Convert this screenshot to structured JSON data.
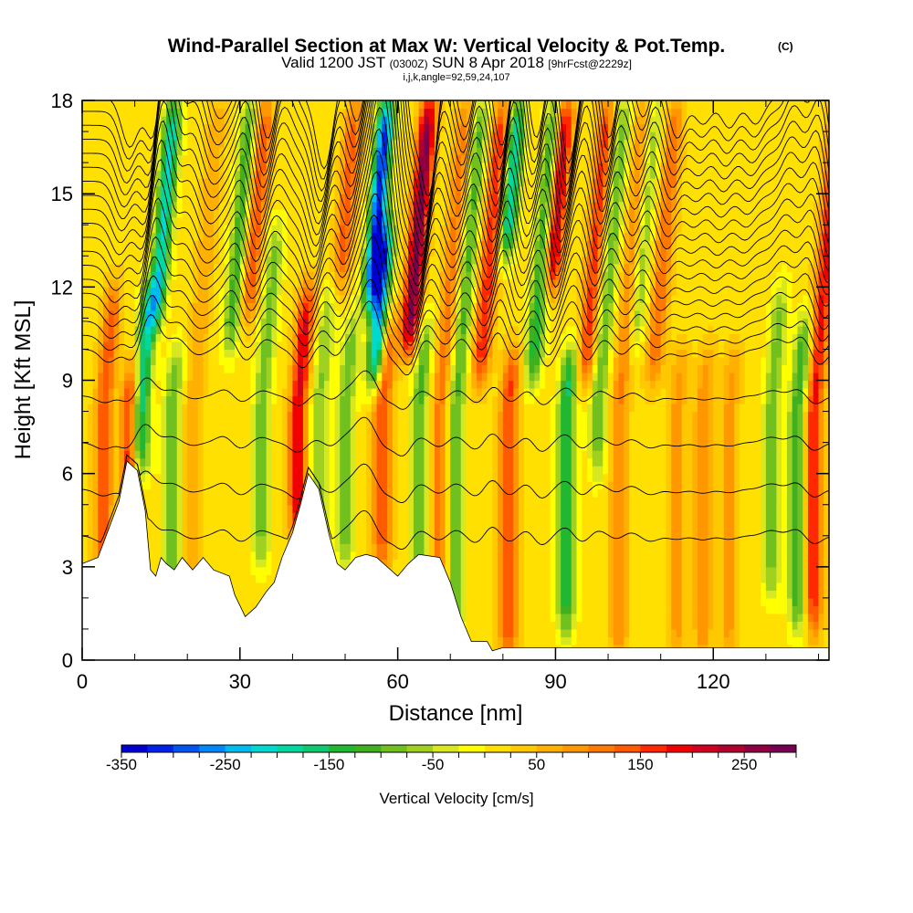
{
  "header": {
    "title": "Wind-Parallel Section at Max W: Vertical Velocity & Pot.Temp.",
    "copyright": "(C)",
    "valid_prefix": "Valid 1200 JST",
    "valid_utc": "(0300Z)",
    "valid_date": "SUN 8 Apr 2018",
    "forecast": "[9hrFcst@2229z]",
    "indices": "i,j,k,angle=92,59,24,107"
  },
  "chart_data": {
    "type": "heatmap",
    "xlabel": "Distance [nm]",
    "ylabel": "Height [Kft MSL]",
    "xlim": [
      0,
      142
    ],
    "ylim": [
      0,
      18
    ],
    "x_ticks": [
      {
        "value": 0,
        "label": "0"
      },
      {
        "value": 30,
        "label": "30"
      },
      {
        "value": 60,
        "label": "60"
      },
      {
        "value": 90,
        "label": "90"
      },
      {
        "value": 120,
        "label": "120"
      }
    ],
    "y_ticks": [
      {
        "value": 0,
        "label": "0"
      },
      {
        "value": 3,
        "label": "3"
      },
      {
        "value": 6,
        "label": "6"
      },
      {
        "value": 9,
        "label": "9"
      },
      {
        "value": 12,
        "label": "12"
      },
      {
        "value": 15,
        "label": "15"
      },
      {
        "value": 18,
        "label": "18"
      }
    ],
    "x_minor_step": 10,
    "y_minor_step": 1,
    "terrain_kft": [
      [
        0,
        3.1
      ],
      [
        3,
        3.3
      ],
      [
        5,
        4.2
      ],
      [
        7,
        5.1
      ],
      [
        8.5,
        6.4
      ],
      [
        10.5,
        6.1
      ],
      [
        12,
        4.8
      ],
      [
        13,
        2.9
      ],
      [
        14,
        2.7
      ],
      [
        15,
        3.3
      ],
      [
        16,
        3.1
      ],
      [
        17.5,
        2.9
      ],
      [
        19,
        3.3
      ],
      [
        21,
        2.9
      ],
      [
        23,
        3.3
      ],
      [
        25,
        2.9
      ],
      [
        28,
        2.7
      ],
      [
        29,
        2.1
      ],
      [
        31,
        1.4
      ],
      [
        33,
        1.7
      ],
      [
        35,
        2.2
      ],
      [
        36.5,
        2.5
      ],
      [
        38,
        3.3
      ],
      [
        40,
        4.1
      ],
      [
        41.5,
        5.0
      ],
      [
        43,
        6.0
      ],
      [
        45,
        5.5
      ],
      [
        47,
        4.0
      ],
      [
        48.5,
        3.1
      ],
      [
        50,
        2.9
      ],
      [
        52,
        3.3
      ],
      [
        54,
        3.4
      ],
      [
        56,
        3.3
      ],
      [
        58,
        3.0
      ],
      [
        60,
        2.7
      ],
      [
        62,
        3.1
      ],
      [
        64,
        3.4
      ],
      [
        68,
        3.3
      ],
      [
        70,
        2.5
      ],
      [
        72,
        1.4
      ],
      [
        74,
        0.6
      ],
      [
        77,
        0.6
      ],
      [
        78,
        0.3
      ],
      [
        80,
        0.4
      ],
      [
        90,
        0.4
      ],
      [
        110,
        0.4
      ],
      [
        142,
        0.4
      ]
    ],
    "w_columns": [
      {
        "x": 4,
        "w": 130,
        "lo": 0.0,
        "hi": 12.0
      },
      {
        "x": 9,
        "w": 170,
        "lo": 5.0,
        "hi": 9.5
      },
      {
        "x": 11,
        "w": -200,
        "lo": 6.0,
        "hi": 12.0
      },
      {
        "x": 12.5,
        "w": -220,
        "lo": 11.0,
        "hi": 18.0
      },
      {
        "x": 17,
        "w": -110,
        "lo": 1.0,
        "hi": 10.0
      },
      {
        "x": 21,
        "w": 60,
        "lo": 0.0,
        "hi": 18.0
      },
      {
        "x": 27,
        "w": -130,
        "lo": 10.0,
        "hi": 18.0
      },
      {
        "x": 30,
        "w": 130,
        "lo": 11.0,
        "hi": 18.0
      },
      {
        "x": 34,
        "w": -100,
        "lo": 3.0,
        "hi": 14.0
      },
      {
        "x": 41,
        "w": 190,
        "lo": 4.0,
        "hi": 12.0
      },
      {
        "x": 45,
        "w": -90,
        "lo": 3.0,
        "hi": 12.0
      },
      {
        "x": 47,
        "w": 120,
        "lo": 12.0,
        "hi": 18.0
      },
      {
        "x": 50,
        "w": -110,
        "lo": 3.0,
        "hi": 11.0
      },
      {
        "x": 53,
        "w": -330,
        "lo": 11.5,
        "hi": 18.0
      },
      {
        "x": 55,
        "w": -270,
        "lo": 9.0,
        "hi": 14.0
      },
      {
        "x": 57,
        "w": 140,
        "lo": 3.0,
        "hi": 11.0
      },
      {
        "x": 61,
        "w": 270,
        "lo": 10.0,
        "hi": 18.0
      },
      {
        "x": 64,
        "w": -120,
        "lo": 2.0,
        "hi": 11.0
      },
      {
        "x": 68,
        "w": 100,
        "lo": 0.0,
        "hi": 18.0
      },
      {
        "x": 71,
        "w": -120,
        "lo": 1.0,
        "hi": 18.0
      },
      {
        "x": 75,
        "w": 160,
        "lo": 9.0,
        "hi": 18.0
      },
      {
        "x": 78,
        "w": -210,
        "lo": 13.0,
        "hi": 18.0
      },
      {
        "x": 81,
        "w": 140,
        "lo": 0.0,
        "hi": 10.0
      },
      {
        "x": 85,
        "w": -160,
        "lo": 9.0,
        "hi": 18.0
      },
      {
        "x": 87,
        "w": 230,
        "lo": 12.0,
        "hi": 18.0
      },
      {
        "x": 92,
        "w": -170,
        "lo": 1.0,
        "hi": 10.0
      },
      {
        "x": 95,
        "w": 150,
        "lo": 9.0,
        "hi": 18.0
      },
      {
        "x": 98,
        "w": -110,
        "lo": 6.0,
        "hi": 18.0
      },
      {
        "x": 102,
        "w": 90,
        "lo": 0.0,
        "hi": 18.0
      },
      {
        "x": 104,
        "w": -90,
        "lo": 10.0,
        "hi": 18.0
      },
      {
        "x": 108,
        "w": 110,
        "lo": 9.0,
        "hi": 18.0
      },
      {
        "x": 113,
        "w": 70,
        "lo": 0.0,
        "hi": 10.0
      },
      {
        "x": 118,
        "w": 80,
        "lo": 0.0,
        "hi": 10.0
      },
      {
        "x": 123,
        "w": 70,
        "lo": 0.0,
        "hi": 10.0
      },
      {
        "x": 131,
        "w": -100,
        "lo": 2.0,
        "hi": 12.0
      },
      {
        "x": 136,
        "w": -140,
        "lo": 1.0,
        "hi": 11.0
      },
      {
        "x": 139,
        "w": 170,
        "lo": 1.0,
        "hi": 18.0
      }
    ],
    "colorbar": {
      "label": "Vertical Velocity [cm/s]",
      "min": -350,
      "max": 300,
      "step": 25,
      "tick_labels": [
        {
          "value": -350,
          "label": "-350"
        },
        {
          "value": -250,
          "label": "-250"
        },
        {
          "value": -150,
          "label": "-150"
        },
        {
          "value": -50,
          "label": "-50"
        },
        {
          "value": 50,
          "label": "50"
        },
        {
          "value": 150,
          "label": "150"
        },
        {
          "value": 250,
          "label": "250"
        }
      ],
      "colors": [
        "#0000d0",
        "#0022e8",
        "#0055f0",
        "#0088f8",
        "#00bbf0",
        "#00d8d0",
        "#00d8a0",
        "#10c870",
        "#20b830",
        "#40b020",
        "#70c020",
        "#a0d020",
        "#d8e820",
        "#ffff00",
        "#ffe000",
        "#ffc800",
        "#ffb000",
        "#ff9800",
        "#ff7800",
        "#ff5a00",
        "#ff2800",
        "#f00000",
        "#d00020",
        "#b00030",
        "#900040",
        "#780050"
      ]
    }
  }
}
